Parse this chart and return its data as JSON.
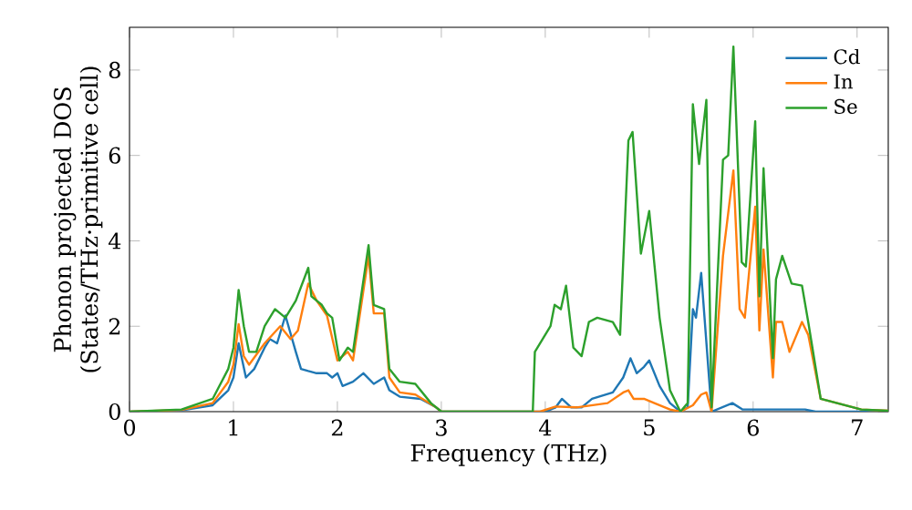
{
  "chart_data": {
    "type": "line",
    "xlabel": "Frequency (THz)",
    "ylabel": "Phonon projected DOS\n(States/THz·primitive cell)",
    "xlim": [
      0,
      7.3
    ],
    "ylim": [
      0,
      9
    ],
    "xticks": [
      0,
      1,
      2,
      3,
      4,
      5,
      6,
      7
    ],
    "yticks": [
      0,
      2,
      4,
      6,
      8
    ],
    "legend": "top right",
    "grid": false,
    "marker": "none",
    "line_style": "solid",
    "series": [
      {
        "name": "Cd",
        "color": "#1f77b4",
        "x": [
          0,
          0.5,
          0.8,
          0.95,
          1.0,
          1.05,
          1.12,
          1.2,
          1.3,
          1.35,
          1.42,
          1.5,
          1.6,
          1.65,
          1.72,
          1.8,
          1.9,
          1.95,
          2.0,
          2.05,
          2.15,
          2.25,
          2.35,
          2.45,
          2.5,
          2.6,
          2.8,
          2.95,
          3.0,
          4.0,
          4.1,
          4.16,
          4.25,
          4.35,
          4.45,
          4.65,
          4.75,
          4.82,
          4.88,
          4.95,
          5.0,
          5.1,
          5.2,
          5.3,
          5.37,
          5.42,
          5.45,
          5.5,
          5.6,
          5.8,
          5.9,
          6.5,
          6.6,
          7.3
        ],
        "values": [
          0,
          0.03,
          0.15,
          0.5,
          0.8,
          1.6,
          0.8,
          1.0,
          1.5,
          1.7,
          1.6,
          2.25,
          1.4,
          1.0,
          0.95,
          0.9,
          0.9,
          0.8,
          0.9,
          0.6,
          0.7,
          0.9,
          0.65,
          0.8,
          0.5,
          0.35,
          0.3,
          0.1,
          0,
          0,
          0.1,
          0.3,
          0.1,
          0.1,
          0.3,
          0.45,
          0.8,
          1.25,
          0.9,
          1.05,
          1.2,
          0.6,
          0.2,
          0,
          0.1,
          2.4,
          2.2,
          3.25,
          0,
          0.2,
          0.05,
          0.05,
          0,
          0
        ]
      },
      {
        "name": "In",
        "color": "#ff7f0e",
        "x": [
          0,
          0.5,
          0.8,
          0.95,
          1.0,
          1.05,
          1.1,
          1.15,
          1.3,
          1.45,
          1.55,
          1.62,
          1.72,
          1.8,
          1.9,
          2.0,
          2.1,
          2.15,
          2.3,
          2.35,
          2.45,
          2.5,
          2.6,
          2.75,
          2.95,
          3.0,
          3.95,
          4.1,
          4.3,
          4.6,
          4.75,
          4.8,
          4.85,
          4.95,
          5.05,
          5.2,
          5.3,
          5.42,
          5.5,
          5.55,
          5.6,
          5.71,
          5.81,
          5.87,
          5.92,
          6.02,
          6.06,
          6.1,
          6.19,
          6.22,
          6.28,
          6.35,
          6.47,
          6.53,
          6.65,
          7.04,
          7.3
        ],
        "values": [
          0,
          0.04,
          0.2,
          0.7,
          1.1,
          2.05,
          1.3,
          1.1,
          1.6,
          2.0,
          1.7,
          1.9,
          3.0,
          2.6,
          2.25,
          1.2,
          1.4,
          1.2,
          3.65,
          2.3,
          2.3,
          0.8,
          0.45,
          0.4,
          0.1,
          0,
          0,
          0.12,
          0.1,
          0.2,
          0.45,
          0.5,
          0.3,
          0.3,
          0.2,
          0.05,
          0,
          0.15,
          0.4,
          0.45,
          0,
          3.65,
          5.65,
          2.4,
          2.2,
          4.8,
          1.9,
          3.8,
          0.8,
          2.1,
          2.1,
          1.4,
          2.1,
          1.8,
          0.3,
          0.05,
          0.02
        ]
      },
      {
        "name": "Se",
        "color": "#2ca02c",
        "x": [
          0,
          0.5,
          0.8,
          0.95,
          1.0,
          1.05,
          1.1,
          1.15,
          1.22,
          1.3,
          1.4,
          1.45,
          1.5,
          1.6,
          1.72,
          1.75,
          1.85,
          1.9,
          1.95,
          2.02,
          2.1,
          2.15,
          2.3,
          2.35,
          2.45,
          2.5,
          2.6,
          2.75,
          2.9,
          3.0,
          3.88,
          3.9,
          4.05,
          4.09,
          4.15,
          4.2,
          4.27,
          4.35,
          4.42,
          4.5,
          4.65,
          4.72,
          4.8,
          4.84,
          4.92,
          5.0,
          5.1,
          5.2,
          5.3,
          5.37,
          5.42,
          5.48,
          5.55,
          5.6,
          5.71,
          5.76,
          5.81,
          5.89,
          5.93,
          6.02,
          6.06,
          6.1,
          6.19,
          6.22,
          6.28,
          6.37,
          6.47,
          6.53,
          6.65,
          7.04,
          7.3
        ],
        "values": [
          0,
          0.05,
          0.3,
          1.0,
          1.5,
          2.85,
          2.0,
          1.4,
          1.4,
          2.0,
          2.4,
          2.3,
          2.2,
          2.6,
          3.37,
          2.7,
          2.5,
          2.3,
          2.2,
          1.2,
          1.5,
          1.4,
          3.9,
          2.5,
          2.4,
          1.0,
          0.7,
          0.65,
          0.2,
          0,
          0,
          1.4,
          2.0,
          2.5,
          2.4,
          2.95,
          1.5,
          1.3,
          2.1,
          2.2,
          2.1,
          1.8,
          6.35,
          6.55,
          3.7,
          4.7,
          2.2,
          0.5,
          0,
          0.2,
          7.2,
          5.8,
          7.3,
          0.1,
          5.9,
          6.0,
          8.55,
          3.5,
          3.4,
          6.8,
          2.7,
          5.7,
          1.25,
          3.1,
          3.65,
          3.0,
          2.95,
          2.1,
          0.3,
          0.05,
          0.02
        ]
      }
    ]
  }
}
